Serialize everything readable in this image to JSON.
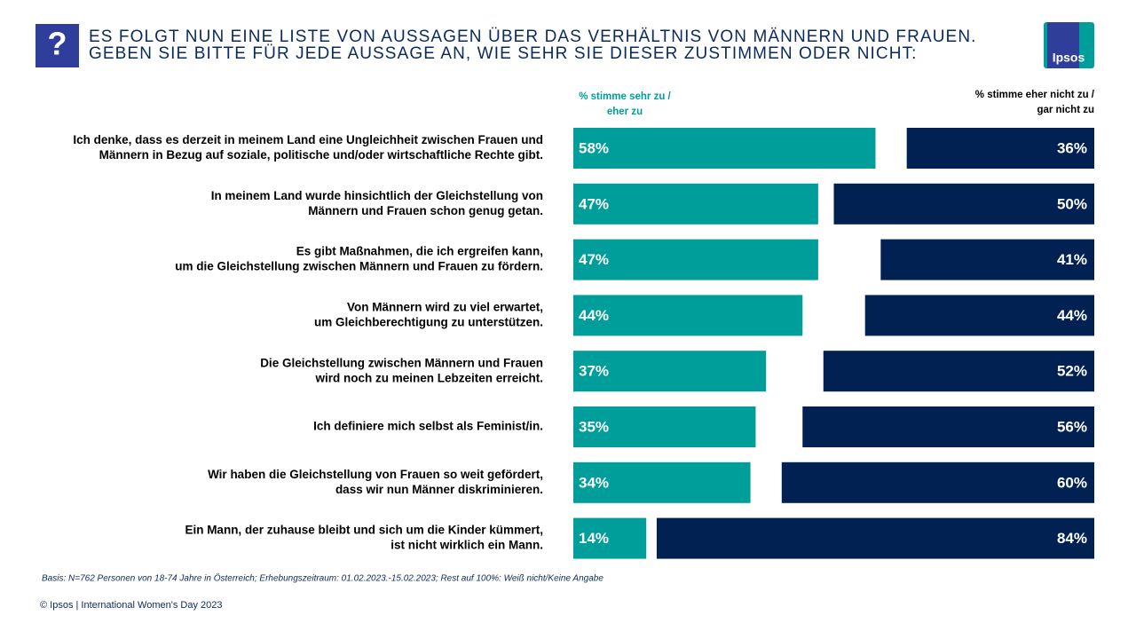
{
  "chart_data": {
    "type": "diverging-bar",
    "icon": "?",
    "title": [
      "ES FOLGT NUN EINE LISTE VON AUSSAGEN ÜBER DAS VERHÄLTNIS VON MÄNNERN UND FRAUEN.",
      "GEBEN SIE BITTE FÜR JEDE AUSSAGE AN, WIE SEHR SIE DIESER ZUSTIMMEN ODER NICHT:"
    ],
    "logo": "Ipsos",
    "categories": [
      [
        "Ich denke, dass es derzeit in meinem Land eine Ungleichheit zwischen Frauen und",
        "Männern in Bezug auf soziale, politische und/oder wirtschaftliche Rechte gibt."
      ],
      [
        "In meinem Land wurde hinsichtlich der Gleichstellung von",
        "Männern und Frauen schon genug getan."
      ],
      [
        "Es gibt Maßnahmen, die ich ergreifen kann,",
        "um die Gleichstellung zwischen Männern und Frauen zu fördern."
      ],
      [
        "Von Männern wird zu viel erwartet,",
        "um Gleichberechtigung zu unterstützen."
      ],
      [
        "Die Gleichstellung zwischen Männern und Frauen",
        "wird noch zu meinen Lebzeiten erreicht."
      ],
      [
        "Ich definiere mich selbst als Feminist/in."
      ],
      [
        "Wir haben die Gleichstellung von Frauen so weit gefördert,",
        "dass wir nun Männer diskriminieren."
      ],
      [
        "Ein Mann, der zuhause bleibt und sich um die Kinder kümmert,",
        "ist nicht wirklich ein Mann."
      ]
    ],
    "series": [
      {
        "name": [
          "% stimme sehr zu /",
          "eher zu"
        ],
        "color": "#009e9a",
        "values": [
          58,
          47,
          47,
          44,
          37,
          35,
          34,
          14
        ],
        "value_labels": [
          "58%",
          "47%",
          "47%",
          "44%",
          "37%",
          "35%",
          "34%",
          "14%"
        ]
      },
      {
        "name": [
          "% stimme eher nicht zu /",
          "gar nicht zu"
        ],
        "color": "#002152",
        "values": [
          36,
          50,
          41,
          44,
          52,
          56,
          60,
          84
        ],
        "value_labels": [
          "36%",
          "50%",
          "41%",
          "44%",
          "52%",
          "56%",
          "60%",
          "84%"
        ]
      }
    ],
    "footnote": "Basis: N=762 Personen von 18-74 Jahre in Österreich; Erhebungszeitraum: 01.02.2023.-15.02.2023; Rest auf 100%: Weiß nicht/Keine Angabe",
    "source": "© Ipsos | International Women's Day 2023"
  }
}
